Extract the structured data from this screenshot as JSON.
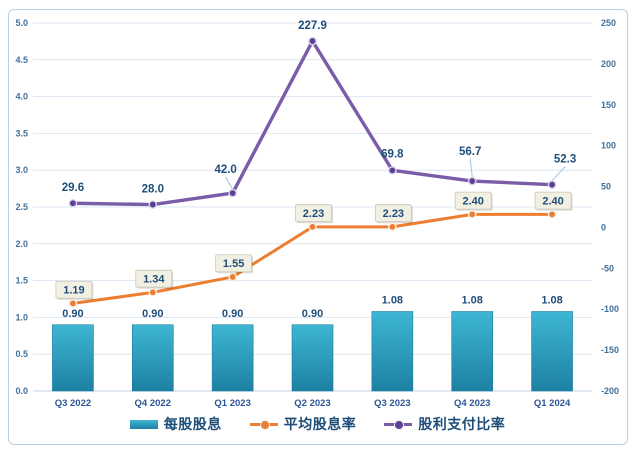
{
  "chart_data": {
    "type": "combo",
    "categories": [
      "Q3 2022",
      "Q4 2022",
      "Q1 2023",
      "Q2 2023",
      "Q3 2023",
      "Q4 2023",
      "Q1 2024"
    ],
    "series": [
      {
        "name": "每股股息",
        "chart": "bar",
        "axis": "left",
        "values": [
          0.9,
          0.9,
          0.9,
          0.9,
          1.08,
          1.08,
          1.08
        ],
        "labels": [
          "0.90",
          "0.90",
          "0.90",
          "0.90",
          "1.08",
          "1.08",
          "1.08"
        ],
        "color_top": "#3eb6d4",
        "color_bottom": "#1d81a3",
        "border_color": "#1a7c9e"
      },
      {
        "name": "平均股息率",
        "chart": "line",
        "axis": "left",
        "values": [
          1.19,
          1.34,
          1.55,
          2.23,
          2.23,
          2.4,
          2.4
        ],
        "labels": [
          "1.19",
          "1.34",
          "1.55",
          "2.23",
          "2.23",
          "2.40",
          "2.40"
        ],
        "color": "#ed7d31",
        "marker_fill": "#ed7d31",
        "label_box_bg": "#f2efe3",
        "label_box_border": "#ccc6b4"
      },
      {
        "name": "股利支付比率",
        "chart": "line",
        "axis": "right",
        "values": [
          29.6,
          28.0,
          42.0,
          227.9,
          69.8,
          56.7,
          52.3
        ],
        "labels": [
          "29.6",
          "28.0",
          "42.0",
          "227.9",
          "69.8",
          "56.7",
          "52.3"
        ],
        "color": "#7a5ca8",
        "marker_fill": "#5c3e96"
      }
    ],
    "left_axis": {
      "min": 0,
      "max": 5,
      "step": 0.5,
      "ticks": [
        "0.0",
        "0.5",
        "1.0",
        "1.5",
        "2.0",
        "2.5",
        "3.0",
        "3.5",
        "4.0",
        "4.5",
        "5.0"
      ]
    },
    "right_axis": {
      "min": -200,
      "max": 250,
      "step": 50,
      "ticks": [
        "-200",
        "-150",
        "-100",
        "-50",
        "0",
        "50",
        "100",
        "150",
        "200",
        "250"
      ]
    },
    "grid": true,
    "legend_position": "bottom",
    "colors": {
      "axis_tick": "#41719c",
      "category_label": "#2e5597",
      "data_label": "#1f4e79",
      "gridline": "#dde6f3",
      "axis_line": "#c6d2e4",
      "leader_line": "#9dc3e6",
      "frame": "#bcd0e4",
      "background": "#ffffff"
    }
  },
  "legend": {
    "items": [
      {
        "label": "每股股息",
        "swatch": "bar"
      },
      {
        "label": "平均股息率",
        "swatch": "line-dot"
      },
      {
        "label": "股利支付比率",
        "swatch": "line-dot"
      }
    ]
  }
}
